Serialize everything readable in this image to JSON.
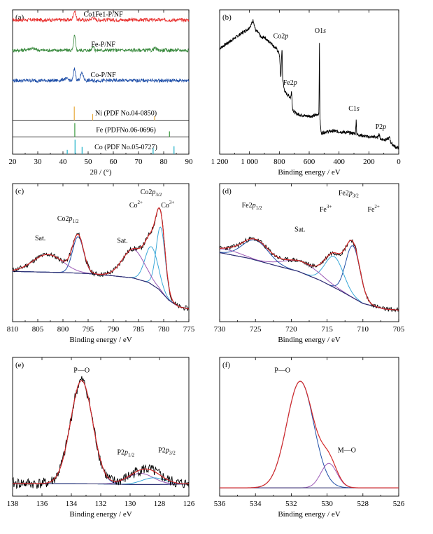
{
  "chart_data": [
    {
      "id": "a",
      "type": "line",
      "panel_label": "(a)",
      "xlabel": "2θ / (°)",
      "ylabel": "",
      "xlim": [
        20,
        90
      ],
      "x_ticks": [
        20,
        30,
        40,
        50,
        60,
        70,
        80,
        90
      ],
      "series": [
        {
          "name": "Co1Fe1-P/NF",
          "color": "#e8302e",
          "baseline": 0.93,
          "noise": 0.012,
          "peaks": [
            [
              44.6,
              0.06,
              0.5
            ],
            [
              51.9,
              0.015,
              0.6
            ]
          ]
        },
        {
          "name": "Fe-P/NF",
          "color": "#3a8a3e",
          "baseline": 0.72,
          "noise": 0.012,
          "peaks": [
            [
              44.6,
              0.1,
              0.35
            ],
            [
              51.9,
              0.03,
              0.4
            ],
            [
              27.5,
              0.012,
              1.5
            ],
            [
              76.5,
              0.015,
              0.5
            ]
          ]
        },
        {
          "name": "Co-P/NF",
          "color": "#1f4fa8",
          "baseline": 0.51,
          "noise": 0.012,
          "peaks": [
            [
              44.6,
              0.08,
              0.4
            ],
            [
              47.5,
              0.05,
              0.6
            ],
            [
              41.0,
              0.012,
              1.0
            ]
          ]
        }
      ],
      "references": [
        {
          "label": "Ni (PDF No.04-0850)",
          "color": "#e8a93a",
          "y_base": 0.235,
          "y_top": 0.33,
          "lines": [
            [
              44.5,
              1.0
            ],
            [
              51.8,
              0.45
            ],
            [
              76.4,
              0.3
            ]
          ]
        },
        {
          "label": "Fe (PDFNo.06-0696)",
          "color": "#3a9a3e",
          "y_base": 0.12,
          "y_top": 0.215,
          "lines": [
            [
              44.7,
              1.0
            ],
            [
              82.3,
              0.4
            ]
          ]
        },
        {
          "label": "Co (PDF No.05-0727)",
          "color": "#1cb0c8",
          "y_base": 0.0,
          "y_top": 0.1,
          "lines": [
            [
              41.7,
              0.3
            ],
            [
              44.8,
              1.0
            ],
            [
              47.6,
              0.5
            ],
            [
              75.8,
              0.45
            ],
            [
              84.1,
              0.55
            ]
          ]
        }
      ]
    },
    {
      "id": "b",
      "type": "line",
      "panel_label": "(b)",
      "xlabel": "Binding energy / eV",
      "ylabel": "",
      "xlim": [
        1200,
        0
      ],
      "x_ticks": [
        1200,
        1000,
        800,
        600,
        400,
        200,
        0
      ],
      "x_tick_labels": [
        "1 200",
        "1 000",
        "800",
        "600",
        "400",
        "200",
        "0"
      ],
      "series": [
        {
          "name": "",
          "color": "#000000",
          "points": [
            [
              1200,
              0.78
            ],
            [
              1150,
              0.82
            ],
            [
              1100,
              0.86
            ],
            [
              1050,
              0.9
            ],
            [
              1010,
              0.93
            ],
            [
              990,
              0.96
            ],
            [
              975,
              1.0
            ],
            [
              960,
              0.92
            ],
            [
              940,
              0.9
            ],
            [
              920,
              0.86
            ],
            [
              900,
              0.87
            ],
            [
              880,
              0.84
            ],
            [
              860,
              0.83
            ],
            [
              840,
              0.8
            ],
            [
              820,
              0.78
            ],
            [
              800,
              0.74
            ],
            [
              790,
              0.55
            ],
            [
              782,
              0.8
            ],
            [
              778,
              0.55
            ],
            [
              770,
              0.48
            ],
            [
              760,
              0.44
            ],
            [
              740,
              0.42
            ],
            [
              725,
              0.4
            ],
            [
              718,
              0.45
            ],
            [
              712,
              0.32
            ],
            [
              705,
              0.3
            ],
            [
              690,
              0.28
            ],
            [
              660,
              0.27
            ],
            [
              620,
              0.26
            ],
            [
              580,
              0.26
            ],
            [
              545,
              0.27
            ],
            [
              535,
              0.28
            ],
            [
              531,
              0.82
            ],
            [
              528,
              0.24
            ],
            [
              520,
              0.13
            ],
            [
              480,
              0.14
            ],
            [
              440,
              0.145
            ],
            [
              400,
              0.14
            ],
            [
              360,
              0.135
            ],
            [
              320,
              0.13
            ],
            [
              290,
              0.125
            ],
            [
              285,
              0.24
            ],
            [
              281,
              0.12
            ],
            [
              250,
              0.11
            ],
            [
              200,
              0.1
            ],
            [
              170,
              0.1
            ],
            [
              140,
              0.095
            ],
            [
              134,
              0.12
            ],
            [
              129,
              0.12
            ],
            [
              125,
              0.085
            ],
            [
              100,
              0.08
            ],
            [
              80,
              0.08
            ],
            [
              65,
              0.09
            ],
            [
              60,
              0.1
            ],
            [
              55,
              0.06
            ],
            [
              40,
              0.04
            ],
            [
              20,
              0.02
            ],
            [
              0,
              0.015
            ]
          ]
        }
      ],
      "annotations": [
        {
          "text": "Co2",
          "italic": "p",
          "x": 790,
          "y": 0.86
        },
        {
          "text": "Fe2",
          "italic": "p",
          "x": 728,
          "y": 0.5
        },
        {
          "text": "O1",
          "italic": "s",
          "x": 525,
          "y": 0.9
        },
        {
          "text": "C1",
          "italic": "s",
          "x": 300,
          "y": 0.3
        },
        {
          "text": "P2",
          "italic": "p",
          "x": 120,
          "y": 0.16
        }
      ]
    },
    {
      "id": "c",
      "type": "line",
      "panel_label": "(c)",
      "xlabel": "Binding energy / eV",
      "ylabel": "",
      "xlim": [
        810,
        775
      ],
      "x_ticks": [
        810,
        805,
        800,
        795,
        790,
        785,
        780,
        775
      ],
      "background": [
        [
          810,
          0.38
        ],
        [
          800,
          0.37
        ],
        [
          795,
          0.36
        ],
        [
          790,
          0.34
        ],
        [
          786,
          0.32
        ],
        [
          783,
          0.28
        ],
        [
          781,
          0.22
        ],
        [
          779,
          0.12
        ],
        [
          777,
          0.06
        ],
        [
          775,
          0.04
        ]
      ],
      "components": [
        {
          "color": "#3aa8d8",
          "peak": 780.6,
          "height": 0.58,
          "sigma": 0.9
        },
        {
          "color": "#3aa8d8",
          "peak": 782.4,
          "height": 0.34,
          "sigma": 1.3
        },
        {
          "color": "#9b59b6",
          "peak": 786.0,
          "height": 0.26,
          "sigma": 2.2
        },
        {
          "color": "#1f4fa8",
          "peak": 797.0,
          "height": 0.33,
          "sigma": 1.1
        },
        {
          "color": "#9b59b6",
          "peak": 803.0,
          "height": 0.16,
          "sigma": 3.0
        }
      ],
      "annotations": [
        {
          "text": "Sat.",
          "x": 804.5,
          "y": 0.66
        },
        {
          "text": "Co2",
          "italic": "p",
          "sub": "1/2",
          "x": 799,
          "y": 0.84
        },
        {
          "text": "Sat.",
          "x": 788.2,
          "y": 0.64
        },
        {
          "text": "Co",
          "sup": "2+",
          "x": 785.5,
          "y": 0.96
        },
        {
          "text": "Co2",
          "italic": "p",
          "sub": "3/2",
          "x": 782.5,
          "y": 1.08
        },
        {
          "text": "Co",
          "sup": "3+",
          "x": 779.2,
          "y": 0.96
        }
      ]
    },
    {
      "id": "d",
      "type": "line",
      "panel_label": "(d)",
      "xlabel": "Binding energy / eV",
      "ylabel": "",
      "xlim": [
        730,
        705
      ],
      "x_ticks": [
        730,
        725,
        720,
        715,
        710,
        705
      ],
      "background": [
        [
          730,
          0.55
        ],
        [
          726,
          0.5
        ],
        [
          722,
          0.43
        ],
        [
          719,
          0.38
        ],
        [
          716,
          0.3
        ],
        [
          713,
          0.2
        ],
        [
          710,
          0.09
        ],
        [
          707,
          0.04
        ],
        [
          705,
          0.03
        ]
      ],
      "components": [
        {
          "color": "#1f4fa8",
          "peak": 711.4,
          "height": 0.47,
          "sigma": 1.0
        },
        {
          "color": "#3aa8d8",
          "peak": 714.0,
          "height": 0.28,
          "sigma": 1.3
        },
        {
          "color": "#9b59b6",
          "peak": 718.5,
          "height": 0.1,
          "sigma": 2.5
        },
        {
          "color": "#1f4fa8",
          "peak": 725.0,
          "height": 0.18,
          "sigma": 1.8
        },
        {
          "color": "#9b59b6",
          "peak": 729.0,
          "height": 0.04,
          "sigma": 2.0
        }
      ],
      "annotations": [
        {
          "text": "Fe2",
          "italic": "p",
          "sub": "1/2",
          "x": 725.5,
          "y": 0.96
        },
        {
          "text": "Sat.",
          "x": 718.8,
          "y": 0.74
        },
        {
          "text": "Fe",
          "sup": "3+",
          "x": 715.2,
          "y": 0.92
        },
        {
          "text": "Fe2",
          "italic": "p",
          "sub": "3/2",
          "x": 712.0,
          "y": 1.07
        },
        {
          "text": "Fe",
          "sup": "2+",
          "x": 708.5,
          "y": 0.92
        }
      ]
    },
    {
      "id": "e",
      "type": "line",
      "panel_label": "(e)",
      "xlabel": "Binding energy / eV",
      "ylabel": "",
      "xlim": [
        138,
        126
      ],
      "x_ticks": [
        138,
        136,
        134,
        132,
        130,
        128,
        126
      ],
      "background": [
        [
          138,
          0.04
        ],
        [
          132,
          0.035
        ],
        [
          130,
          0.03
        ],
        [
          128,
          0.03
        ],
        [
          126,
          0.035
        ]
      ],
      "components": [
        {
          "color": "#1f4fa8",
          "peak": 133.3,
          "height": 0.93,
          "sigma": 0.75
        },
        {
          "color": "#9b59b6",
          "peak": 129.3,
          "height": 0.1,
          "sigma": 0.9
        },
        {
          "color": "#3aa8d8",
          "peak": 128.4,
          "height": 0.06,
          "sigma": 0.8
        }
      ],
      "annotations": [
        {
          "text": "P—O",
          "x": 133.3,
          "y": 1.04
        },
        {
          "text": "P2",
          "italic": "p",
          "sub": "1/2",
          "x": 130.3,
          "y": 0.3
        },
        {
          "text": "P2",
          "italic": "p",
          "sub": "3/2",
          "x": 127.5,
          "y": 0.32
        }
      ]
    },
    {
      "id": "f",
      "type": "line",
      "panel_label": "(f)",
      "xlabel": "Binding energy / eV",
      "ylabel": "",
      "xlim": [
        536,
        526
      ],
      "x_ticks": [
        536,
        534,
        532,
        530,
        528,
        526
      ],
      "background": [
        [
          536,
          0.0
        ],
        [
          532,
          0.0
        ],
        [
          530,
          0.0
        ],
        [
          528,
          0.0
        ],
        [
          526,
          0.0
        ]
      ],
      "components": [
        {
          "color": "#1f4fa8",
          "peak": 531.5,
          "height": 0.96,
          "sigma": 0.75
        },
        {
          "color": "#9b59b6",
          "peak": 529.9,
          "height": 0.22,
          "sigma": 0.45
        }
      ],
      "annotations": [
        {
          "text": "P—O",
          "x": 532.5,
          "y": 1.04
        },
        {
          "text": "M—O",
          "x": 528.9,
          "y": 0.32
        }
      ]
    }
  ]
}
